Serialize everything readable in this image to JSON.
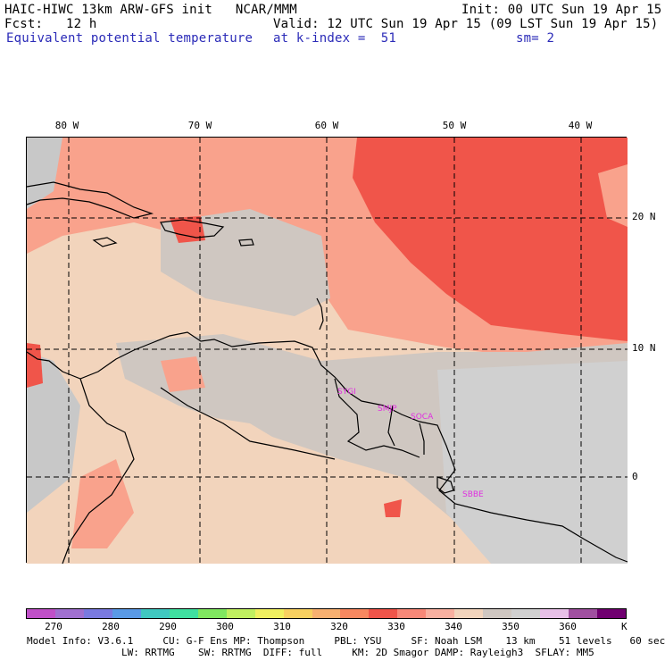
{
  "header": {
    "line1_left": "HAIC-HIWC 13km ARW-GFS init   NCAR/MMM",
    "line1_right": "Init: 00 UTC Sun 19 Apr 15",
    "line2_left": "Fcst:   12 h",
    "line2_right": "Valid: 12 UTC Sun 19 Apr 15 (09 LST Sun 19 Apr 15)",
    "field": "Equivalent potential temperature",
    "level": "at k-index =  51",
    "smoothing": "sm= 2"
  },
  "map": {
    "lon_labels": [
      "80 W",
      "70 W",
      "60 W",
      "50 W",
      "40 W"
    ],
    "lat_labels": [
      "20 N",
      "10 N",
      "0"
    ],
    "stations": [
      "SYGI",
      "SMJP",
      "SOCA",
      "SBBE"
    ],
    "colors": {
      "ocean_high": "#f0554a",
      "ocean_mid": "#f9a28c",
      "land_mid": "#f2d4bc",
      "land_low": "#cfc7c1",
      "cool": "#c8c8c8",
      "coast": "#000000",
      "station": "#e030e0"
    }
  },
  "colorbar": {
    "ticks": [
      "270",
      "280",
      "290",
      "300",
      "310",
      "320",
      "330",
      "340",
      "350",
      "360"
    ],
    "unit": "K",
    "colors": [
      "#c050c8",
      "#a070d0",
      "#7a7ae0",
      "#5a9ae6",
      "#40c8c0",
      "#40e0a0",
      "#80e860",
      "#c0f060",
      "#f0f060",
      "#f8d060",
      "#f8b070",
      "#f88860",
      "#f0554a",
      "#f88878",
      "#f9b0a0",
      "#f2d4bc",
      "#cfc7c1",
      "#d0d0d0",
      "#e8c0e8",
      "#a050a0",
      "#700070"
    ]
  },
  "footer": {
    "line1": "Model Info: V3.6.1     CU: G-F Ens MP: Thompson     PBL: YSU     SF: Noah LSM    13 km    51 levels   60 sec",
    "line2": "                LW: RRTMG    SW: RRTMG  DIFF: full     KM: 2D Smagor DAMP: Rayleigh3  SFLAY: MM5"
  }
}
